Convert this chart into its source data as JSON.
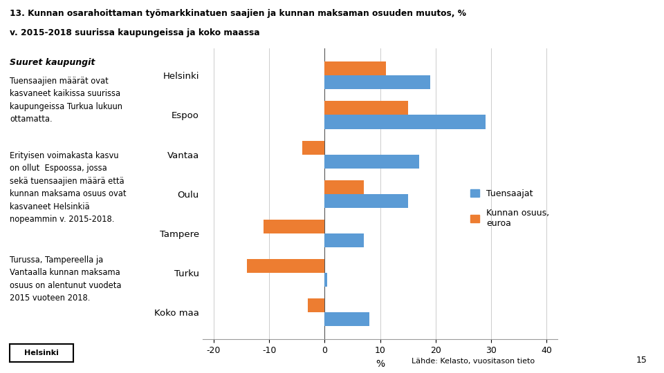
{
  "title_line1": "13. Kunnan osarahoittaman työmarkkinatuen saajien ja kunnan maksaman osuuden muutos, %",
  "title_line2": "v. 2015-2018 suurissa kaupungeissa ja koko maassa",
  "categories": [
    "Helsinki",
    "Espoo",
    "Vantaa",
    "Oulu",
    "Tampere",
    "Turku",
    "Koko maa"
  ],
  "tuensaajat": [
    19,
    29,
    17,
    15,
    7,
    0.5,
    8
  ],
  "kunnan_osuus": [
    11,
    15,
    -4,
    7,
    -11,
    -14,
    -3
  ],
  "color_tuensaajat": "#5B9BD5",
  "color_kunnan": "#ED7D31",
  "xlim": [
    -22,
    42
  ],
  "xticks": [
    -20,
    -10,
    0,
    10,
    20,
    30,
    40
  ],
  "xlabel": "%",
  "legend_tuensaajat": "Tuensaajat",
  "legend_kunnan": "Kunnan osuus,\neuroa",
  "annotation_text": "Lähde: Kelasto, vuositason tieto",
  "annotation_page": "15",
  "sidebar_bold": "Suuret kaupungit",
  "sidebar_text1": "Tuensaajien määrät ovat\nkasvaneet kaikissa suurissa\nkaupungeissa Turkua lukuun\nottamatta.",
  "sidebar_text2": "Erityisen voimakasta kasvu\non ollut  Espoossa, jossa\nsekä tuensaajien määrä että\nkunnan maksama osuus ovat\nkasvaneet Helsinkiä\nnopeammin v. 2015-2018.",
  "sidebar_text3": "Turussa, Tampereella ja\nVantaalla kunnan maksama\nosuus on alentunut vuodeta\n2015 vuoteen 2018.",
  "background_color": "#FFFFFF"
}
